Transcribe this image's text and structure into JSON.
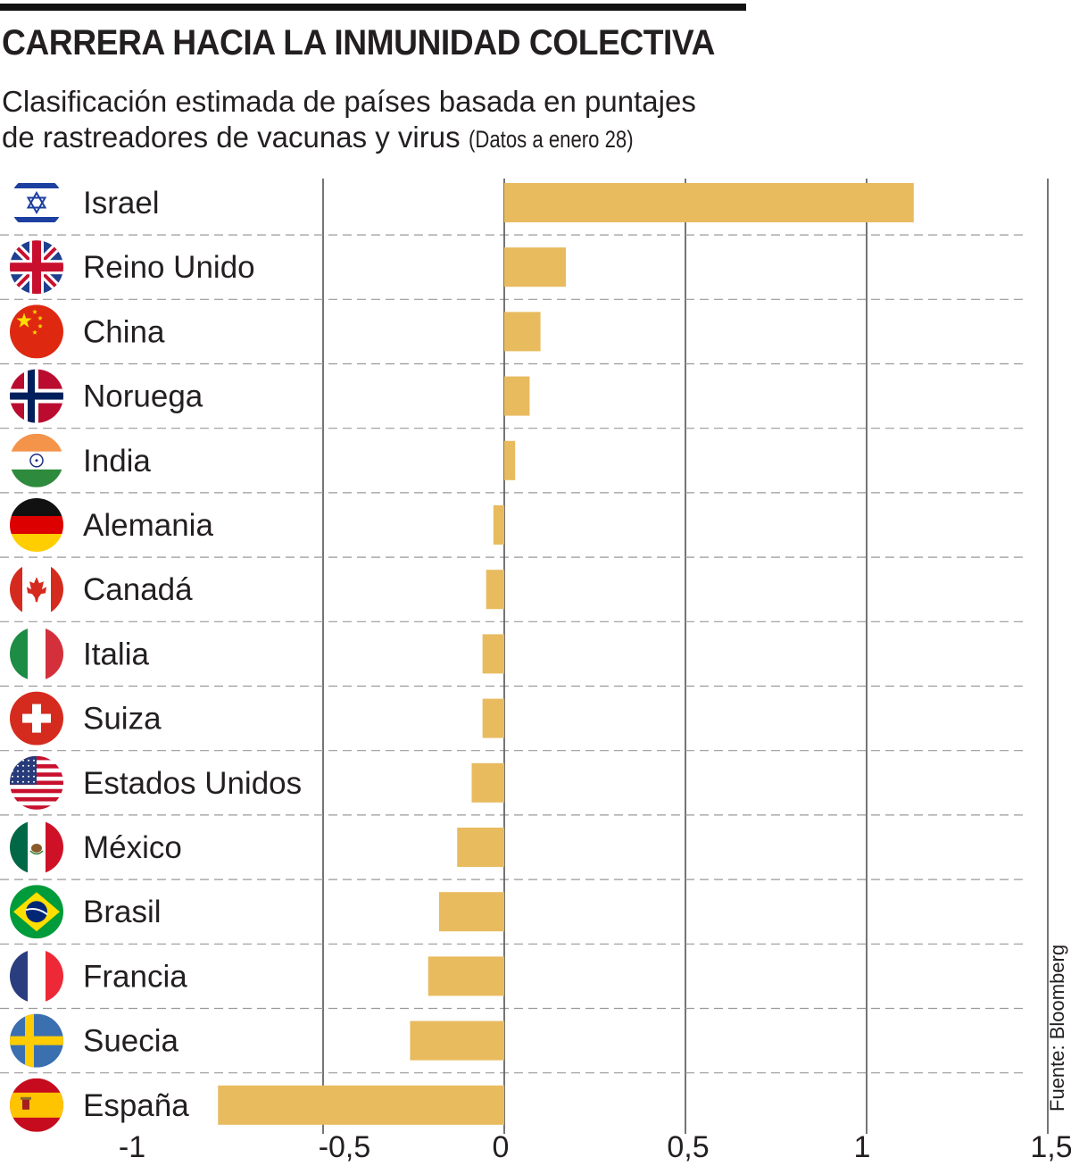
{
  "title": "CARRERA HACIA LA INMUNIDAD COLECTIVA",
  "subtitle_line1": "Clasificación estimada de países basada en puntajes",
  "subtitle_line2": "de rastreadores de vacunas y virus",
  "subtitle_note": "(Datos a enero 28)",
  "source": "Fuente: Bloomberg",
  "colors": {
    "bar": "#e8bb5f",
    "grid": "#2b2b2b",
    "dash": "#9a9a9a"
  },
  "chart_data": {
    "type": "bar",
    "orientation": "horizontal",
    "title": "CARRERA HACIA LA INMUNIDAD COLECTIVA",
    "xlabel": "",
    "ylabel": "",
    "xlim": [
      -1,
      1.5
    ],
    "x_ticks": [
      -1,
      -0.5,
      0,
      0.5,
      1,
      1.5
    ],
    "x_tick_labels": [
      "-1",
      "-0,5",
      "0",
      "0,5",
      "1",
      "1,5"
    ],
    "categories": [
      "Israel",
      "Reino Unido",
      "China",
      "Noruega",
      "India",
      "Alemania",
      "Canadá",
      "Italia",
      "Suiza",
      "Estados Unidos",
      "México",
      "Brasil",
      "Francia",
      "Suecia",
      "España"
    ],
    "flags": [
      "israel-flag-icon",
      "uk-flag-icon",
      "china-flag-icon",
      "norway-flag-icon",
      "india-flag-icon",
      "germany-flag-icon",
      "canada-flag-icon",
      "italy-flag-icon",
      "switzerland-flag-icon",
      "usa-flag-icon",
      "mexico-flag-icon",
      "brazil-flag-icon",
      "france-flag-icon",
      "sweden-flag-icon",
      "spain-flag-icon"
    ],
    "values": [
      1.13,
      0.17,
      0.1,
      0.07,
      0.03,
      -0.03,
      -0.05,
      -0.06,
      -0.06,
      -0.09,
      -0.13,
      -0.18,
      -0.21,
      -0.26,
      -0.79
    ]
  }
}
